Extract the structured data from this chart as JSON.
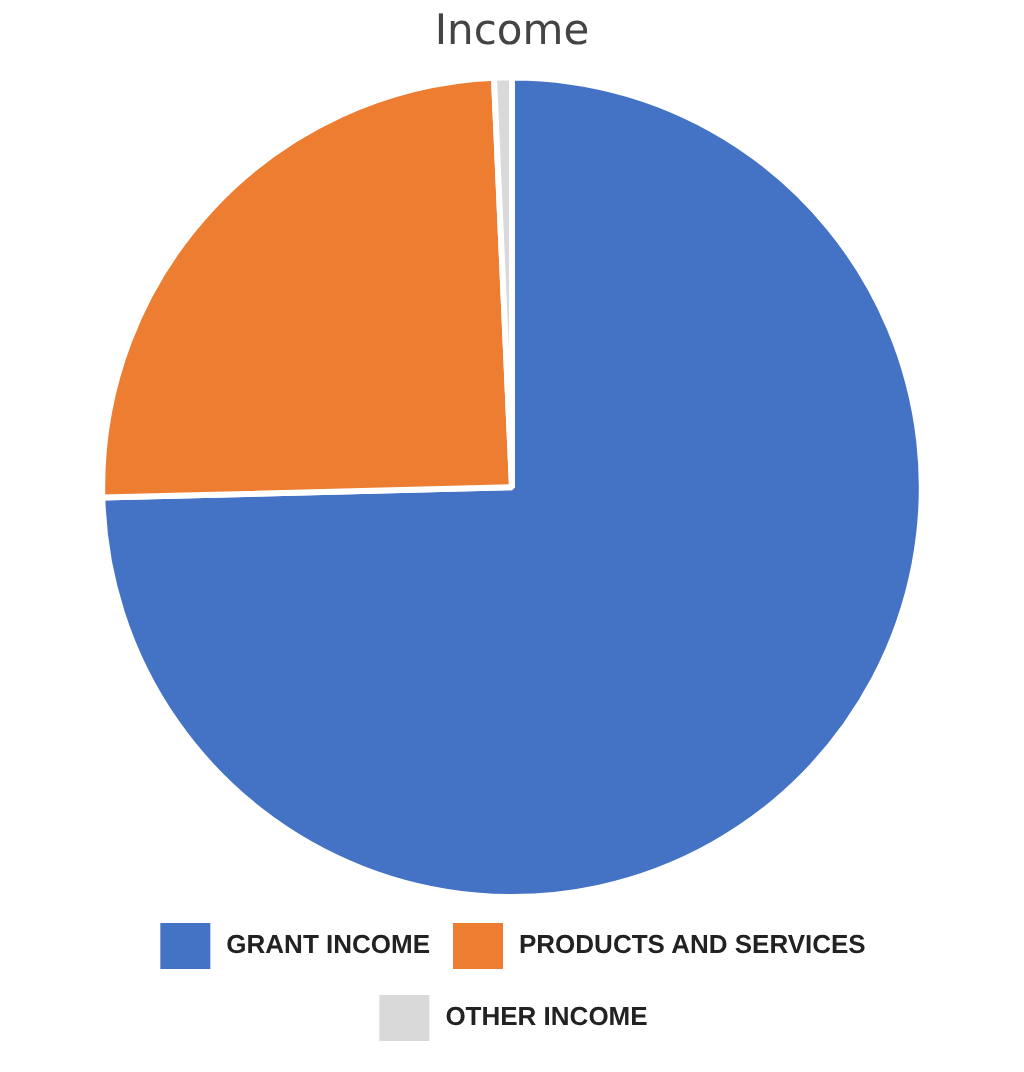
{
  "chart_data": {
    "type": "pie",
    "title": "Income",
    "categories": [
      "GRANT INCOME",
      "PRODUCTS AND SERVICES",
      "OTHER INCOME"
    ],
    "values": [
      74.6,
      24.7,
      0.7
    ],
    "colors": [
      "#4472c4",
      "#ed7d31",
      "#d9d9d9"
    ],
    "legend": "bottom"
  }
}
